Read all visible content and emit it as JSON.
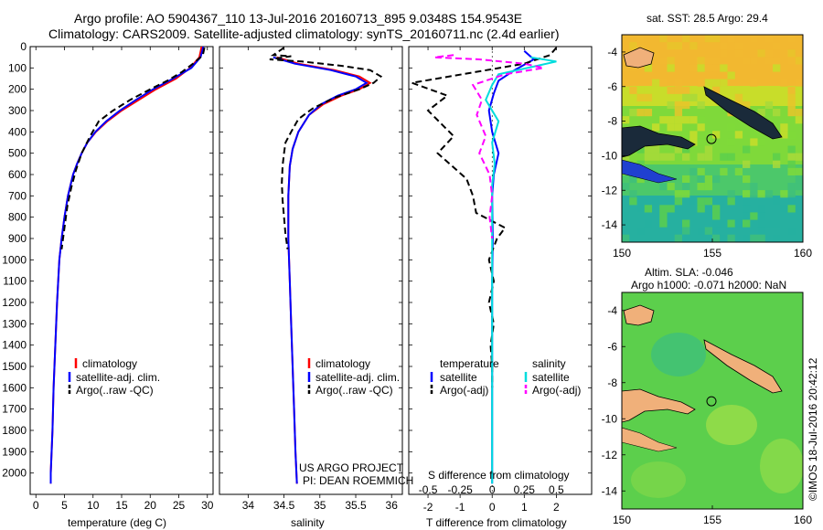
{
  "header": {
    "line1": "Argo profile: AO 5904367_110 13-Jul-2016 20160713_895 9.0348S 154.9543E",
    "line2": "Climatology: CARS2009. Satellite-adjusted climatology: synTS_20160711.nc (2.4d earlier)"
  },
  "footer_stamp": "©IMOS 18-Jul-2016 20:42:12",
  "project": {
    "line1": "US ARGO PROJECT",
    "line2": "PI: DEAN ROEMMICH"
  },
  "colors": {
    "climatology": "#ff0000",
    "satellite": "#0000ff",
    "argo": "#000000",
    "sat_sal": "#00dddd",
    "argo_sal": "#ff00ff"
  },
  "chart_data": [
    {
      "type": "line",
      "id": "temperature",
      "xlabel": "temperature (deg C)",
      "ylim": [
        2100,
        0
      ],
      "xlim": [
        -1,
        31
      ],
      "xticks": [
        0,
        5,
        10,
        15,
        20,
        25,
        30
      ],
      "yticks": [
        0,
        100,
        200,
        300,
        400,
        500,
        600,
        700,
        800,
        900,
        1000,
        1100,
        1200,
        1300,
        1400,
        1500,
        1600,
        1700,
        1800,
        1900,
        2000
      ],
      "legend": [
        "climatology",
        "satellite-adj. clim.",
        "Argo(..raw -QC)"
      ],
      "series": [
        {
          "name": "climatology",
          "color": "#ff0000",
          "dash": "",
          "points": [
            [
              29.0,
              0
            ],
            [
              28.6,
              50
            ],
            [
              27.0,
              100
            ],
            [
              24.5,
              150
            ],
            [
              21.0,
              200
            ],
            [
              18.0,
              250
            ],
            [
              15.0,
              300
            ],
            [
              12.5,
              350
            ],
            [
              10.5,
              400
            ],
            [
              9.0,
              450
            ],
            [
              8.0,
              500
            ],
            [
              7.2,
              550
            ],
            [
              6.5,
              600
            ],
            [
              5.6,
              700
            ],
            [
              5.0,
              800
            ],
            [
              4.5,
              900
            ],
            [
              4.1,
              1000
            ],
            [
              3.7,
              1200
            ],
            [
              3.4,
              1400
            ],
            [
              3.1,
              1600
            ],
            [
              2.9,
              1800
            ],
            [
              2.6,
              2000
            ],
            [
              2.6,
              2050
            ]
          ]
        },
        {
          "name": "satellite-adj. clim.",
          "color": "#0000ff",
          "dash": "",
          "points": [
            [
              29.3,
              0
            ],
            [
              28.8,
              50
            ],
            [
              27.2,
              100
            ],
            [
              24.0,
              150
            ],
            [
              20.5,
              200
            ],
            [
              17.5,
              250
            ],
            [
              14.7,
              300
            ],
            [
              12.3,
              350
            ],
            [
              10.4,
              400
            ],
            [
              9.0,
              450
            ],
            [
              8.0,
              500
            ],
            [
              7.2,
              550
            ],
            [
              6.5,
              600
            ],
            [
              5.6,
              700
            ],
            [
              5.0,
              800
            ],
            [
              4.5,
              900
            ],
            [
              4.1,
              1000
            ],
            [
              3.7,
              1200
            ],
            [
              3.4,
              1400
            ],
            [
              3.1,
              1600
            ],
            [
              2.9,
              1800
            ],
            [
              2.6,
              2000
            ],
            [
              2.6,
              2050
            ]
          ]
        },
        {
          "name": "Argo(..raw -QC)",
          "color": "#000000",
          "dash": "7,4",
          "points": [
            [
              29.5,
              5
            ],
            [
              29.2,
              40
            ],
            [
              27.5,
              80
            ],
            [
              25.5,
              120
            ],
            [
              23.0,
              160
            ],
            [
              20.0,
              200
            ],
            [
              16.5,
              250
            ],
            [
              13.5,
              300
            ],
            [
              11.0,
              350
            ],
            [
              9.5,
              420
            ],
            [
              8.0,
              500
            ],
            [
              7.0,
              580
            ],
            [
              6.2,
              660
            ],
            [
              5.5,
              750
            ],
            [
              5.0,
              850
            ],
            [
              4.5,
              950
            ]
          ]
        }
      ]
    },
    {
      "type": "line",
      "id": "salinity",
      "xlabel": "salinity",
      "ylim": [
        2100,
        0
      ],
      "xlim": [
        33.6,
        36.15
      ],
      "xticks": [
        34,
        34.5,
        35,
        35.5,
        36
      ],
      "legend": [
        "climatology",
        "satellite-adj. clim.",
        "Argo(..raw -QC)"
      ],
      "series": [
        {
          "name": "climatology",
          "color": "#ff0000",
          "dash": "",
          "points": [
            [
              34.4,
              50
            ],
            [
              34.7,
              80
            ],
            [
              35.2,
              110
            ],
            [
              35.55,
              140
            ],
            [
              35.7,
              170
            ],
            [
              35.55,
              200
            ],
            [
              35.3,
              230
            ],
            [
              35.05,
              270
            ],
            [
              34.85,
              320
            ],
            [
              34.7,
              400
            ],
            [
              34.62,
              480
            ],
            [
              34.58,
              560
            ],
            [
              34.56,
              700
            ],
            [
              34.56,
              900
            ],
            [
              34.58,
              1100
            ],
            [
              34.6,
              1300
            ],
            [
              34.62,
              1500
            ],
            [
              34.64,
              1700
            ],
            [
              34.66,
              1900
            ],
            [
              34.68,
              2050
            ]
          ]
        },
        {
          "name": "satellite-adj. clim.",
          "color": "#0000ff",
          "dash": "",
          "points": [
            [
              34.35,
              50
            ],
            [
              34.65,
              80
            ],
            [
              35.15,
              110
            ],
            [
              35.5,
              140
            ],
            [
              35.65,
              170
            ],
            [
              35.5,
              200
            ],
            [
              35.25,
              230
            ],
            [
              35.02,
              270
            ],
            [
              34.85,
              320
            ],
            [
              34.7,
              400
            ],
            [
              34.62,
              480
            ],
            [
              34.58,
              560
            ],
            [
              34.56,
              700
            ],
            [
              34.56,
              900
            ],
            [
              34.58,
              1100
            ],
            [
              34.6,
              1300
            ],
            [
              34.62,
              1500
            ],
            [
              34.64,
              1700
            ],
            [
              34.66,
              1900
            ],
            [
              34.68,
              2050
            ]
          ]
        },
        {
          "name": "Argo(..raw -QC)",
          "color": "#000000",
          "dash": "7,4",
          "points": [
            [
              34.5,
              5
            ],
            [
              34.35,
              40
            ],
            [
              34.6,
              45
            ],
            [
              34.3,
              60
            ],
            [
              34.75,
              70
            ],
            [
              35.3,
              90
            ],
            [
              35.7,
              110
            ],
            [
              35.85,
              140
            ],
            [
              35.75,
              170
            ],
            [
              35.55,
              200
            ],
            [
              35.2,
              240
            ],
            [
              34.9,
              290
            ],
            [
              34.7,
              340
            ],
            [
              34.6,
              400
            ],
            [
              34.52,
              450
            ],
            [
              34.5,
              500
            ],
            [
              34.48,
              560
            ],
            [
              34.47,
              640
            ],
            [
              34.48,
              720
            ],
            [
              34.5,
              800
            ],
            [
              34.52,
              880
            ],
            [
              34.55,
              950
            ]
          ]
        }
      ]
    },
    {
      "type": "line",
      "id": "differences",
      "xlabel_t": "T difference from climatology",
      "xlabel_s": "S difference from climatology",
      "ylim": [
        2100,
        0
      ],
      "xlim_t": [
        -2.6,
        3.1
      ],
      "xlim_s": [
        -0.65,
        0.775
      ],
      "xticks_t": [
        -2,
        -1,
        0,
        1,
        2
      ],
      "xticks_s": [
        -0.5,
        -0.25,
        0,
        0.25,
        0.5
      ],
      "xticklabels_t": [
        "-2",
        "-1",
        "0",
        "1",
        "2"
      ],
      "xticklabels_s": [
        "-0.5",
        "-0.25",
        "0",
        "0.25",
        "0.5"
      ],
      "legend_temperature_title": "temperature",
      "legend_salinity_title": "salinity",
      "legend": [
        "satellite",
        "Argo(-adj)",
        "satellite",
        "Argo(-adj)"
      ],
      "series": [
        {
          "name": "temperature satellite",
          "color": "#0000ff",
          "dash": "",
          "points": [
            [
              1.0,
              20
            ],
            [
              1.3,
              60
            ],
            [
              0.7,
              110
            ],
            [
              0.2,
              160
            ],
            [
              0.05,
              220
            ],
            [
              -0.1,
              300
            ],
            [
              0.0,
              400
            ],
            [
              0.2,
              500
            ],
            [
              0.05,
              600
            ],
            [
              0.0,
              700
            ],
            [
              0.02,
              900
            ],
            [
              0.0,
              1100
            ],
            [
              0.0,
              1500
            ],
            [
              0.0,
              2050
            ]
          ]
        },
        {
          "name": "temperature Argo(-adj)",
          "color": "#000000",
          "dash": "7,4",
          "points": [
            [
              2.0,
              5
            ],
            [
              1.8,
              40
            ],
            [
              1.0,
              80
            ],
            [
              -2.5,
              170
            ],
            [
              -1.4,
              230
            ],
            [
              -2.0,
              300
            ],
            [
              -1.2,
              420
            ],
            [
              -1.7,
              500
            ],
            [
              -0.8,
              620
            ],
            [
              -0.6,
              700
            ],
            [
              -0.5,
              780
            ],
            [
              0.4,
              850
            ],
            [
              0.15,
              900
            ],
            [
              -0.1,
              1000
            ],
            [
              0.05,
              1100
            ],
            [
              -0.1,
              1200
            ],
            [
              0.05,
              1300
            ],
            [
              -0.05,
              1400
            ],
            [
              0.0,
              1500
            ],
            [
              0.0,
              1600
            ]
          ]
        },
        {
          "name": "salinity satellite",
          "color": "#00dddd",
          "dash": "",
          "points": [
            [
              0.3,
              50
            ],
            [
              0.5,
              70
            ],
            [
              0.35,
              90
            ],
            [
              0.05,
              130
            ],
            [
              0.0,
              180
            ],
            [
              -0.05,
              250
            ],
            [
              0.05,
              350
            ],
            [
              0.0,
              450
            ],
            [
              0.02,
              550
            ],
            [
              0.0,
              650
            ],
            [
              0.0,
              800
            ],
            [
              0.0,
              1000
            ],
            [
              0.0,
              1300
            ],
            [
              0.0,
              1600
            ],
            [
              0.0,
              2050
            ]
          ]
        },
        {
          "name": "salinity Argo(-adj)",
          "color": "#ff00ff",
          "dash": "7,4",
          "points": [
            [
              -0.3,
              40
            ],
            [
              -0.45,
              50
            ],
            [
              -0.1,
              60
            ],
            [
              0.25,
              80
            ],
            [
              0.4,
              100
            ],
            [
              0.1,
              130
            ],
            [
              -0.15,
              180
            ],
            [
              -0.08,
              250
            ],
            [
              -0.12,
              320
            ],
            [
              -0.05,
              420
            ],
            [
              -0.1,
              500
            ],
            [
              -0.02,
              600
            ],
            [
              0.0,
              700
            ],
            [
              -0.02,
              800
            ],
            [
              0.0,
              900
            ]
          ]
        }
      ]
    },
    {
      "type": "heatmap",
      "id": "sst-map",
      "title": "sat. SST: 28.5 Argo: 29.4",
      "xlim": [
        150,
        160
      ],
      "ylim": [
        -15,
        -3
      ],
      "xticks": [
        150,
        155,
        160
      ],
      "yticks": [
        -14,
        -12,
        -10,
        -8,
        -6,
        -4
      ],
      "float_position": {
        "lon": 154.95,
        "lat": -9.03
      }
    },
    {
      "type": "heatmap",
      "id": "sla-map",
      "title_line1": "Altim. SLA: -0.046",
      "title_line2": "Argo h1000: -0.071 h2000: NaN",
      "xlim": [
        150,
        160
      ],
      "ylim": [
        -15,
        -3
      ],
      "xticks": [
        150,
        155,
        160
      ],
      "yticks": [
        -14,
        -12,
        -10,
        -8,
        -6,
        -4
      ],
      "float_position": {
        "lon": 154.95,
        "lat": -9.03
      }
    }
  ]
}
